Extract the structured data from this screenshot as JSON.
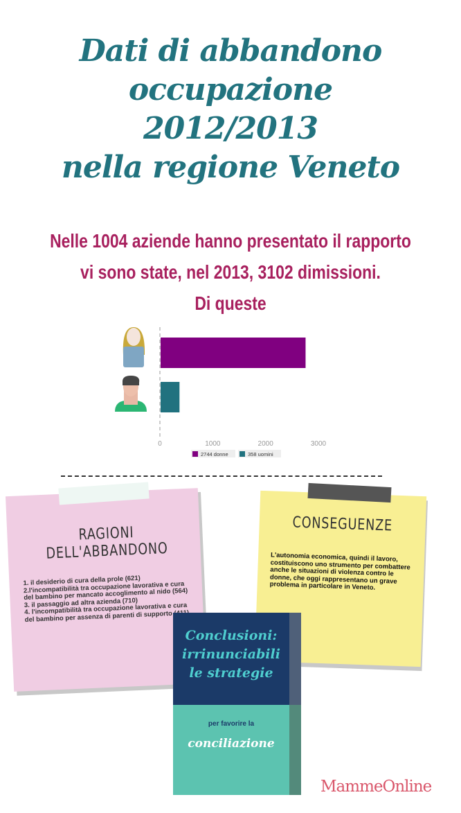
{
  "title": {
    "lines": [
      "Dati di abbandono",
      "occupazione",
      "2012/2013",
      "nella regione Veneto"
    ]
  },
  "subtitle": {
    "lines": [
      "Nelle 1004 aziende hanno presentato il rapporto",
      "vi sono state, nel 2013, 3102 dimissioni.",
      "Di queste"
    ]
  },
  "chart_data": {
    "type": "bar",
    "orientation": "horizontal",
    "categories": [
      "donne",
      "uomini"
    ],
    "category_icons": [
      "woman-avatar-icon",
      "man-avatar-icon"
    ],
    "series": [
      {
        "name": "2744 donne",
        "values": [
          2744,
          null
        ],
        "color": "#800080"
      },
      {
        "name": "358 uomini",
        "values": [
          null,
          358
        ],
        "color": "#21727f"
      }
    ],
    "xlim": [
      0,
      3000
    ],
    "x_ticks": [
      "0",
      "1000",
      "2000",
      "3000"
    ],
    "legend": {
      "placement": "bottom",
      "entries": [
        "2744 donne",
        "358 uomini"
      ]
    },
    "grid": false
  },
  "ragioni": {
    "title": "RAGIONI DELL'ABBANDONO",
    "items": [
      "1. il desiderio di cura della prole (621)",
      "2.l'incompatibilità tra occupazione lavorativa e cura del bambino per mancato accoglimento al nido (564)",
      "3. il passaggio ad altra azienda (710)",
      "4. l'incompatibilità tra occupazione lavorativa e cura del bambino per assenza di parenti di supporto (411)"
    ],
    "color": "#f0cde3"
  },
  "conseguenze": {
    "title": "CONSEGUENZE",
    "text": "L'autonomia economica, quindi il lavoro, costituiscono uno strumento per combattere anche le situazioni di violenza contro le donne, che oggi rappresentano un grave problema in particolare in Veneto.",
    "color": "#f8ef93"
  },
  "conclusioni": {
    "heading_lines": [
      "Conclusioni:",
      "irrinunciabili",
      "le strategie"
    ],
    "sub": "per favorire la",
    "word": "conciliazione"
  },
  "logo": {
    "text": "MammeOnline",
    "color": "#d9566a"
  }
}
